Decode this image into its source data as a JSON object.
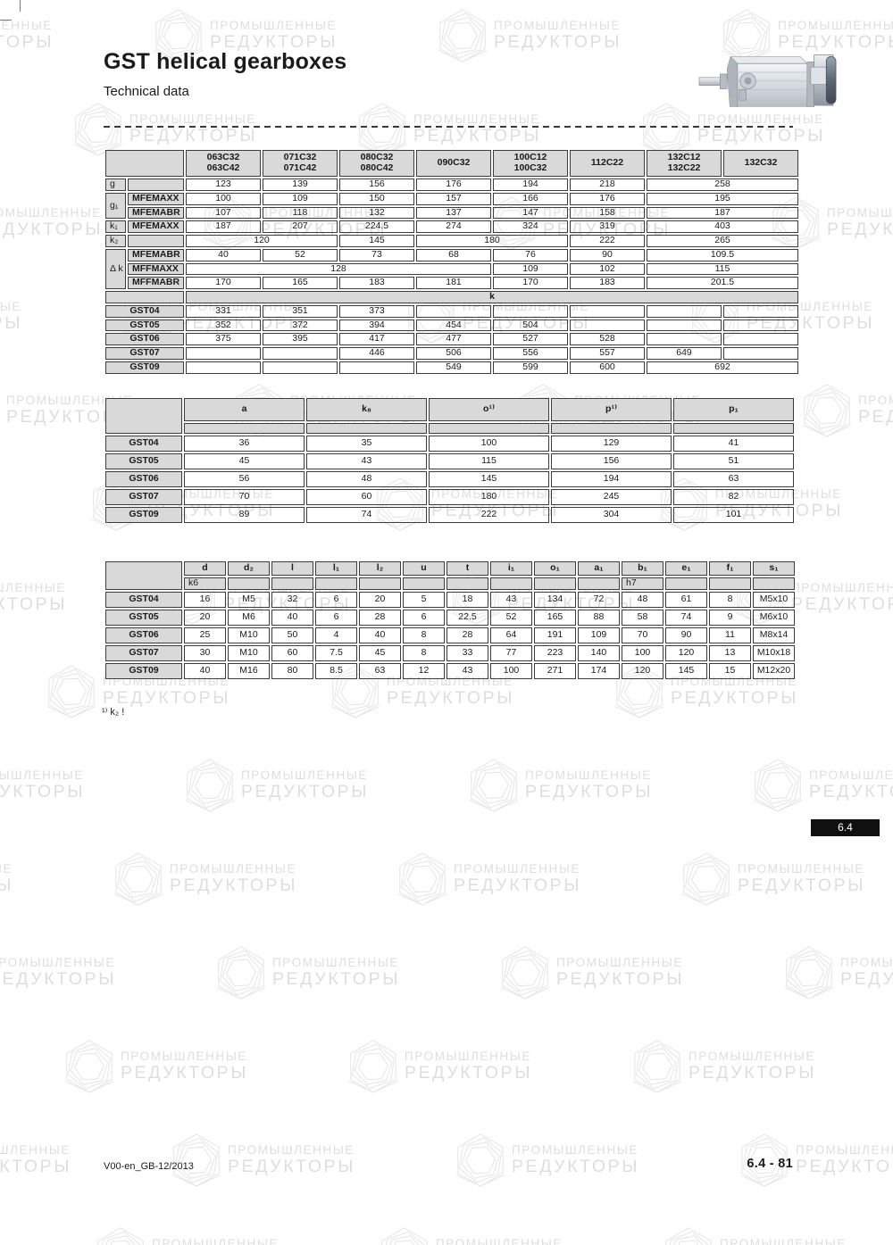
{
  "page": {
    "title": "GST helical gearboxes",
    "subtitle": "Technical data"
  },
  "watermark": {
    "line1": "ПРОМЫШЛЕННЫЕ",
    "line2": "РЕДУКТОРЫ"
  },
  "badge": "6.4",
  "footnote": "¹⁾ k₂ !",
  "footer": {
    "left": "V00-en_GB-12/2013",
    "right": "6.4 - 81"
  },
  "table1": {
    "rows": [
      [
        {
          "t": "",
          "c": 2,
          "k": "h"
        },
        {
          "t": "063C32\n063C42",
          "k": "h"
        },
        {
          "t": "071C32\n071C42",
          "k": "h"
        },
        {
          "t": "080C32\n080C42",
          "k": "h"
        },
        {
          "t": "090C32\n",
          "k": "h"
        },
        {
          "t": "100C12\n100C32",
          "k": "h"
        },
        {
          "t": "112C22\n",
          "k": "h"
        },
        {
          "t": "132C12\n132C22",
          "k": "h"
        },
        {
          "t": "132C32\n",
          "k": "h"
        }
      ],
      [
        {
          "t": "g",
          "k": "gl"
        },
        {
          "t": "",
          "k": "g"
        },
        {
          "t": "123"
        },
        {
          "t": "139"
        },
        {
          "t": "156"
        },
        {
          "t": "176"
        },
        {
          "t": "194"
        },
        {
          "t": "218"
        },
        {
          "t": "258",
          "c": 2
        }
      ],
      [
        {
          "t": "g₁",
          "k": "gl",
          "r": 2
        },
        {
          "t": "MFEMAXX",
          "k": "g"
        },
        {
          "t": "100"
        },
        {
          "t": "109"
        },
        {
          "t": "150"
        },
        {
          "t": "157"
        },
        {
          "t": "166"
        },
        {
          "t": "176"
        },
        {
          "t": "195",
          "c": 2
        }
      ],
      [
        {
          "t": "MFEMABR",
          "k": "g"
        },
        {
          "t": "107"
        },
        {
          "t": "118"
        },
        {
          "t": "132"
        },
        {
          "t": "137"
        },
        {
          "t": "147"
        },
        {
          "t": "158"
        },
        {
          "t": "187",
          "c": 2
        }
      ],
      [
        {
          "t": "k₁",
          "k": "gl"
        },
        {
          "t": "MFEMAXX",
          "k": "g"
        },
        {
          "t": "187"
        },
        {
          "t": "207"
        },
        {
          "t": "224.5"
        },
        {
          "t": "274"
        },
        {
          "t": "324"
        },
        {
          "t": "319"
        },
        {
          "t": "403",
          "c": 2
        }
      ],
      [
        {
          "t": "k₂",
          "k": "gl"
        },
        {
          "t": "",
          "k": "g"
        },
        {
          "t": "120",
          "c": 2
        },
        {
          "t": "145"
        },
        {
          "t": "180",
          "c": 2
        },
        {
          "t": "222"
        },
        {
          "t": "265",
          "c": 2
        }
      ],
      [
        {
          "t": "Δ k",
          "k": "gl",
          "r": 3
        },
        {
          "t": "MFEMABR",
          "k": "g"
        },
        {
          "t": "40"
        },
        {
          "t": "52"
        },
        {
          "t": "73"
        },
        {
          "t": "68"
        },
        {
          "t": "76"
        },
        {
          "t": "90"
        },
        {
          "t": "109.5",
          "c": 2
        }
      ],
      [
        {
          "t": "MFFMAXX",
          "k": "g"
        },
        {
          "t": "128",
          "c": 4
        },
        {
          "t": "109"
        },
        {
          "t": "102"
        },
        {
          "t": "115",
          "c": 2
        }
      ],
      [
        {
          "t": "MFFMABR",
          "k": "g"
        },
        {
          "t": "170"
        },
        {
          "t": "165"
        },
        {
          "t": "183"
        },
        {
          "t": "181"
        },
        {
          "t": "170"
        },
        {
          "t": "183"
        },
        {
          "t": "201.5",
          "c": 2
        }
      ],
      [
        {
          "t": "",
          "c": 2,
          "k": "g"
        },
        {
          "t": "k",
          "c": 8,
          "k": "h"
        }
      ],
      [
        {
          "t": "GST04",
          "c": 2,
          "k": "h"
        },
        {
          "t": "331"
        },
        {
          "t": "351"
        },
        {
          "t": "373"
        },
        {
          "t": ""
        },
        {
          "t": ""
        },
        {
          "t": ""
        },
        {
          "t": ""
        },
        {
          "t": ""
        }
      ],
      [
        {
          "t": "GST05",
          "c": 2,
          "k": "h"
        },
        {
          "t": "352"
        },
        {
          "t": "372"
        },
        {
          "t": "394"
        },
        {
          "t": "454"
        },
        {
          "t": "504"
        },
        {
          "t": ""
        },
        {
          "t": ""
        },
        {
          "t": ""
        }
      ],
      [
        {
          "t": "GST06",
          "c": 2,
          "k": "h"
        },
        {
          "t": "375"
        },
        {
          "t": "395"
        },
        {
          "t": "417"
        },
        {
          "t": "477"
        },
        {
          "t": "527"
        },
        {
          "t": "528"
        },
        {
          "t": ""
        },
        {
          "t": ""
        }
      ],
      [
        {
          "t": "GST07",
          "c": 2,
          "k": "h"
        },
        {
          "t": ""
        },
        {
          "t": ""
        },
        {
          "t": "446"
        },
        {
          "t": "506"
        },
        {
          "t": "556"
        },
        {
          "t": "557"
        },
        {
          "t": "649"
        },
        {
          "t": ""
        }
      ],
      [
        {
          "t": "GST09",
          "c": 2,
          "k": "h"
        },
        {
          "t": ""
        },
        {
          "t": ""
        },
        {
          "t": ""
        },
        {
          "t": "549"
        },
        {
          "t": "599"
        },
        {
          "t": "600"
        },
        {
          "t": "692",
          "c": 2
        }
      ]
    ]
  },
  "table2": {
    "rows": [
      [
        {
          "t": "",
          "k": "h",
          "r": 2
        },
        {
          "t": "a",
          "k": "h"
        },
        {
          "t": "k₈",
          "k": "h"
        },
        {
          "t": "o¹⁾",
          "k": "h"
        },
        {
          "t": "p¹⁾",
          "k": "h"
        },
        {
          "t": "p₁",
          "k": "h"
        }
      ],
      [
        {
          "t": "",
          "k": "h"
        },
        {
          "t": "",
          "k": "h"
        },
        {
          "t": "",
          "k": "h"
        },
        {
          "t": "",
          "k": "h"
        },
        {
          "t": "",
          "k": "h"
        }
      ],
      [
        {
          "t": "GST04",
          "k": "h"
        },
        {
          "t": "36"
        },
        {
          "t": "35"
        },
        {
          "t": "100"
        },
        {
          "t": "129"
        },
        {
          "t": "41"
        }
      ],
      [
        {
          "t": "GST05",
          "k": "h"
        },
        {
          "t": "45"
        },
        {
          "t": "43"
        },
        {
          "t": "115"
        },
        {
          "t": "156"
        },
        {
          "t": "51"
        }
      ],
      [
        {
          "t": "GST06",
          "k": "h"
        },
        {
          "t": "56"
        },
        {
          "t": "48"
        },
        {
          "t": "145"
        },
        {
          "t": "194"
        },
        {
          "t": "63"
        }
      ],
      [
        {
          "t": "GST07",
          "k": "h"
        },
        {
          "t": "70"
        },
        {
          "t": "60"
        },
        {
          "t": "180"
        },
        {
          "t": "245"
        },
        {
          "t": "82"
        }
      ],
      [
        {
          "t": "GST09",
          "k": "h"
        },
        {
          "t": "89"
        },
        {
          "t": "74"
        },
        {
          "t": "222"
        },
        {
          "t": "304"
        },
        {
          "t": "101"
        }
      ]
    ]
  },
  "table3": {
    "rows": [
      [
        {
          "t": "",
          "k": "h",
          "r": 2
        },
        {
          "t": "d",
          "k": "h"
        },
        {
          "t": "d₂",
          "k": "h"
        },
        {
          "t": "l",
          "k": "h"
        },
        {
          "t": "l₁",
          "k": "h"
        },
        {
          "t": "l₂",
          "k": "h"
        },
        {
          "t": "u",
          "k": "h"
        },
        {
          "t": "t",
          "k": "h"
        },
        {
          "t": "i₁",
          "k": "h"
        },
        {
          "t": "o₁",
          "k": "h"
        },
        {
          "t": "a₁",
          "k": "h"
        },
        {
          "t": "b₁",
          "k": "h"
        },
        {
          "t": "e₁",
          "k": "h"
        },
        {
          "t": "f₁",
          "k": "h"
        },
        {
          "t": "s₁",
          "k": "h"
        }
      ],
      [
        {
          "t": "k6",
          "k": "hl"
        },
        {
          "t": "",
          "k": "h"
        },
        {
          "t": "",
          "k": "h"
        },
        {
          "t": "",
          "k": "h"
        },
        {
          "t": "",
          "k": "h"
        },
        {
          "t": "",
          "k": "h"
        },
        {
          "t": "",
          "k": "h"
        },
        {
          "t": "",
          "k": "h"
        },
        {
          "t": "",
          "k": "h"
        },
        {
          "t": "",
          "k": "h"
        },
        {
          "t": "h7",
          "k": "hl"
        },
        {
          "t": "",
          "k": "h"
        },
        {
          "t": "",
          "k": "h"
        },
        {
          "t": "",
          "k": "h"
        }
      ],
      [
        {
          "t": "GST04",
          "k": "h"
        },
        {
          "t": "16"
        },
        {
          "t": "M5"
        },
        {
          "t": "32"
        },
        {
          "t": "6"
        },
        {
          "t": "20"
        },
        {
          "t": "5"
        },
        {
          "t": "18"
        },
        {
          "t": "43"
        },
        {
          "t": "134"
        },
        {
          "t": "72"
        },
        {
          "t": "48"
        },
        {
          "t": "61"
        },
        {
          "t": "8"
        },
        {
          "t": "M5x10"
        }
      ],
      [
        {
          "t": "GST05",
          "k": "h"
        },
        {
          "t": "20"
        },
        {
          "t": "M6"
        },
        {
          "t": "40"
        },
        {
          "t": "6"
        },
        {
          "t": "28"
        },
        {
          "t": "6"
        },
        {
          "t": "22.5"
        },
        {
          "t": "52"
        },
        {
          "t": "165"
        },
        {
          "t": "88"
        },
        {
          "t": "58"
        },
        {
          "t": "74"
        },
        {
          "t": "9"
        },
        {
          "t": "M6x10"
        }
      ],
      [
        {
          "t": "GST06",
          "k": "h"
        },
        {
          "t": "25"
        },
        {
          "t": "M10"
        },
        {
          "t": "50"
        },
        {
          "t": "4"
        },
        {
          "t": "40"
        },
        {
          "t": "8"
        },
        {
          "t": "28"
        },
        {
          "t": "64"
        },
        {
          "t": "191"
        },
        {
          "t": "109"
        },
        {
          "t": "70"
        },
        {
          "t": "90"
        },
        {
          "t": "11"
        },
        {
          "t": "M8x14"
        }
      ],
      [
        {
          "t": "GST07",
          "k": "h"
        },
        {
          "t": "30"
        },
        {
          "t": "M10"
        },
        {
          "t": "60"
        },
        {
          "t": "7.5"
        },
        {
          "t": "45"
        },
        {
          "t": "8"
        },
        {
          "t": "33"
        },
        {
          "t": "77"
        },
        {
          "t": "223"
        },
        {
          "t": "140"
        },
        {
          "t": "100"
        },
        {
          "t": "120"
        },
        {
          "t": "13"
        },
        {
          "t": "M10x18"
        }
      ],
      [
        {
          "t": "GST09",
          "k": "h"
        },
        {
          "t": "40"
        },
        {
          "t": "M16"
        },
        {
          "t": "80"
        },
        {
          "t": "8.5"
        },
        {
          "t": "63"
        },
        {
          "t": "12"
        },
        {
          "t": "43"
        },
        {
          "t": "100"
        },
        {
          "t": "271"
        },
        {
          "t": "174"
        },
        {
          "t": "120"
        },
        {
          "t": "145"
        },
        {
          "t": "15"
        },
        {
          "t": "M12x20"
        }
      ]
    ]
  }
}
